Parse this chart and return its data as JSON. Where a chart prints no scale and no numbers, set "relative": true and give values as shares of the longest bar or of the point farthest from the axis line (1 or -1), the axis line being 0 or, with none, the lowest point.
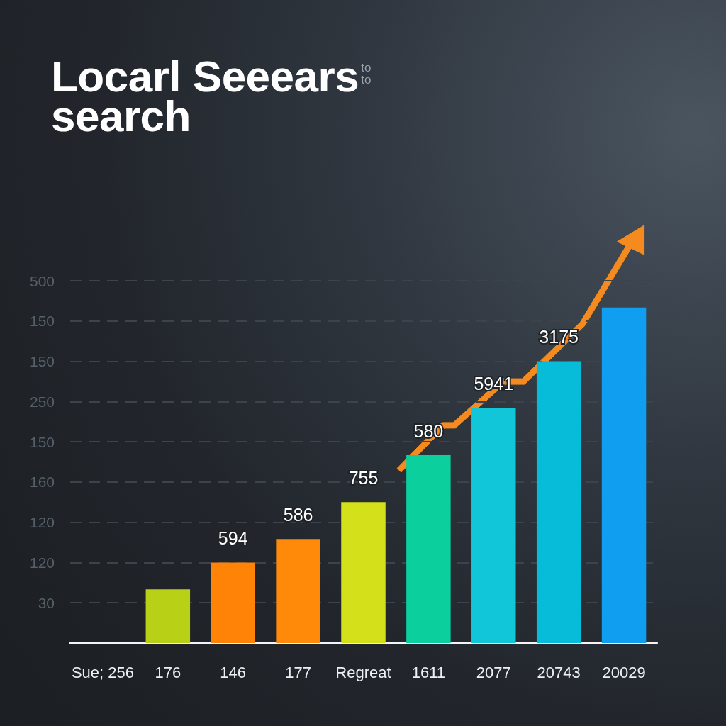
{
  "chart_data": {
    "type": "bar",
    "title": "Locarl Seeears search",
    "relative": true,
    "categories": [
      "Sue; 256",
      "176",
      "146",
      "177",
      "Regreat",
      "1611",
      "2077",
      "20743",
      "20029"
    ],
    "values": [
      null,
      0.16,
      0.24,
      0.31,
      0.42,
      0.56,
      0.7,
      0.84,
      1
    ],
    "colors": [
      null,
      "#b8d117",
      "#ff8307",
      "#ff8a0a",
      "#d4e01a",
      "#0ccf9e",
      "#11c6d8",
      "#07bcd8",
      "#109ff0"
    ],
    "y_categories": [
      "500",
      "150",
      "150",
      "250",
      "150",
      "160",
      "120",
      "120",
      "30",
      null
    ],
    "annotations": [
      "to to",
      {
        "text": "594",
        "x": "146",
        "y": 0.24
      },
      {
        "text": "586",
        "x": "177",
        "y": 0.31
      },
      {
        "text": "755",
        "x": "Regreat",
        "y": 0.42
      },
      {
        "text": "580",
        "x": "1611",
        "y": 0.56
      },
      {
        "text": "5941",
        "x": "2077",
        "y": 0.7
      },
      {
        "text": "3175",
        "x": "20743",
        "y": 0.84
      }
    ],
    "grid": "y"
  }
}
